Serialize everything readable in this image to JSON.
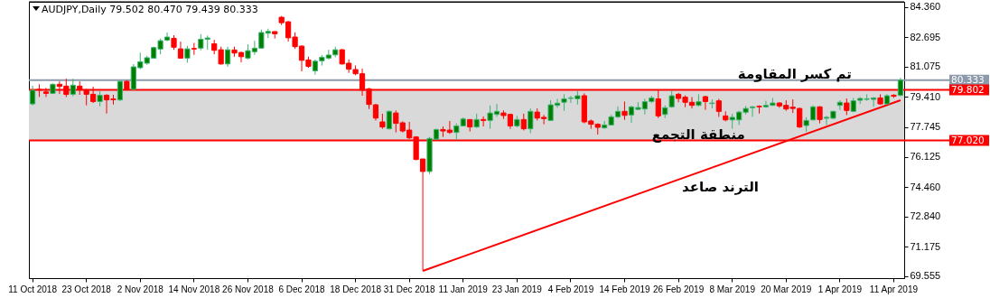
{
  "chart_data": {
    "type": "candlestick",
    "title": "AUDJPY,Daily 79.502 80.470 79.439 80.333",
    "categories": [
      "11 Oct 2018",
      null,
      null,
      null,
      null,
      null,
      null,
      null,
      "23 Oct 2018",
      null,
      null,
      null,
      null,
      null,
      null,
      null,
      "2 Nov 2018",
      null,
      null,
      null,
      null,
      null,
      null,
      null,
      "14 Nov 2018",
      null,
      null,
      null,
      null,
      null,
      null,
      null,
      "26 Nov 2018",
      null,
      null,
      null,
      null,
      null,
      null,
      null,
      "6 Dec 2018",
      null,
      null,
      null,
      null,
      null,
      null,
      null,
      "18 Dec 2018",
      null,
      null,
      null,
      null,
      null,
      null,
      null,
      "31 Dec 2018",
      null,
      null,
      null,
      null,
      null,
      null,
      null,
      "11 Jan 2019",
      null,
      null,
      null,
      null,
      null,
      null,
      null,
      "23 Jan 2019",
      null,
      null,
      null,
      null,
      null,
      null,
      null,
      "4 Feb 2019",
      null,
      null,
      null,
      null,
      null,
      null,
      null,
      "14 Feb 2019",
      null,
      null,
      null,
      null,
      null,
      null,
      null,
      "26 Feb 2019",
      null,
      null,
      null,
      null,
      null,
      null,
      null,
      "8 Mar 2019",
      null,
      null,
      null,
      null,
      null,
      null,
      null,
      "20 Mar 2019",
      null,
      null,
      null,
      null,
      null,
      null,
      null,
      "1 Apr 2019",
      null,
      null,
      null,
      null,
      null,
      null,
      null,
      "11 Apr 2019",
      null
    ],
    "ohlc": [
      [
        79.03,
        80.03,
        78.95,
        79.78
      ],
      [
        79.83,
        80.11,
        79.41,
        79.79
      ],
      [
        79.69,
        79.91,
        79.41,
        79.61
      ],
      [
        79.61,
        80.16,
        79.58,
        80.11
      ],
      [
        80.11,
        80.27,
        79.58,
        79.99
      ],
      [
        80.01,
        80.41,
        79.41,
        79.55
      ],
      [
        79.56,
        80.41,
        79.45,
        80.06
      ],
      [
        80.01,
        80.27,
        79.53,
        79.81
      ],
      [
        79.81,
        79.86,
        78.95,
        79.56
      ],
      [
        79.56,
        79.98,
        79.08,
        79.16
      ],
      [
        79.16,
        79.73,
        78.9,
        79.51
      ],
      [
        79.51,
        79.56,
        78.5,
        79.25
      ],
      [
        79.3,
        79.53,
        79.0,
        79.26
      ],
      [
        79.25,
        80.31,
        79.18,
        80.27
      ],
      [
        80.27,
        80.32,
        79.81,
        79.83
      ],
      [
        79.83,
        81.22,
        79.81,
        81.07
      ],
      [
        81.02,
        81.85,
        80.94,
        81.35
      ],
      [
        81.27,
        81.68,
        81.19,
        81.57
      ],
      [
        81.55,
        82.18,
        81.52,
        82.13
      ],
      [
        82.05,
        82.63,
        81.76,
        82.51
      ],
      [
        82.54,
        82.96,
        82.48,
        82.71
      ],
      [
        82.64,
        82.81,
        82.01,
        82.15
      ],
      [
        82.06,
        82.46,
        81.52,
        81.55
      ],
      [
        81.55,
        82.23,
        81.3,
        82.06
      ],
      [
        82.08,
        82.39,
        81.73,
        82.05
      ],
      [
        82.1,
        82.87,
        81.98,
        82.59
      ],
      [
        82.59,
        82.79,
        82.01,
        82.66
      ],
      [
        82.34,
        82.56,
        81.76,
        81.98
      ],
      [
        82.01,
        82.18,
        81.19,
        81.23
      ],
      [
        81.23,
        82.18,
        81.07,
        82.01
      ],
      [
        82.0,
        82.18,
        81.63,
        81.83
      ],
      [
        81.86,
        81.9,
        81.32,
        81.63
      ],
      [
        81.55,
        82.31,
        81.48,
        81.96
      ],
      [
        81.9,
        82.51,
        81.73,
        82.1
      ],
      [
        82.1,
        83.12,
        82.06,
        82.96
      ],
      [
        82.92,
        83.17,
        82.66,
        83.02
      ],
      [
        83.01,
        83.02,
        82.63,
        82.89
      ],
      [
        83.8,
        83.87,
        83.37,
        83.5
      ],
      [
        83.55,
        83.59,
        82.46,
        82.67
      ],
      [
        82.71,
        82.97,
        82.06,
        82.18
      ],
      [
        82.21,
        82.26,
        80.82,
        81.43
      ],
      [
        81.45,
        81.63,
        81.02,
        81.1
      ],
      [
        80.85,
        81.47,
        80.64,
        81.38
      ],
      [
        81.4,
        81.72,
        81.14,
        81.6
      ],
      [
        81.55,
        82.01,
        81.48,
        81.72
      ],
      [
        81.73,
        82.18,
        81.6,
        82.01
      ],
      [
        82.01,
        82.06,
        81.19,
        81.23
      ],
      [
        81.27,
        81.48,
        80.74,
        80.94
      ],
      [
        80.92,
        81.15,
        80.61,
        80.69
      ],
      [
        80.69,
        80.97,
        79.48,
        79.78
      ],
      [
        79.86,
        79.91,
        78.75,
        79.0
      ],
      [
        78.98,
        79.03,
        78.12,
        78.25
      ],
      [
        78.04,
        78.49,
        77.66,
        77.76
      ],
      [
        77.66,
        78.67,
        77.62,
        78.62
      ],
      [
        78.53,
        78.67,
        77.46,
        77.96
      ],
      [
        77.99,
        78.07,
        77.46,
        77.54
      ],
      [
        77.59,
        78.04,
        77.09,
        77.16
      ],
      [
        77.21,
        77.26,
        75.93,
        75.97
      ],
      [
        76.0,
        76.0,
        69.84,
        75.31
      ],
      [
        75.31,
        77.21,
        75.17,
        77.13
      ],
      [
        77.09,
        77.67,
        77.04,
        77.62
      ],
      [
        77.62,
        77.79,
        77.21,
        77.54
      ],
      [
        77.59,
        78.09,
        77.38,
        77.46
      ],
      [
        77.46,
        77.96,
        77.04,
        77.82
      ],
      [
        77.82,
        78.29,
        77.79,
        78.2
      ],
      [
        78.17,
        78.17,
        77.51,
        77.76
      ],
      [
        77.76,
        78.49,
        77.71,
        78.17
      ],
      [
        78.17,
        78.34,
        77.79,
        78.12
      ],
      [
        78.12,
        78.95,
        77.66,
        78.53
      ],
      [
        78.45,
        79.03,
        78.32,
        78.62
      ],
      [
        78.53,
        78.67,
        78.2,
        78.39
      ],
      [
        78.45,
        78.49,
        77.66,
        77.82
      ],
      [
        77.82,
        78.37,
        77.74,
        78.17
      ],
      [
        78.17,
        78.49,
        77.57,
        77.66
      ],
      [
        77.66,
        78.78,
        77.42,
        78.62
      ],
      [
        78.58,
        78.78,
        78.12,
        78.25
      ],
      [
        78.29,
        78.42,
        77.91,
        78.22
      ],
      [
        78.12,
        79.23,
        78.09,
        78.98
      ],
      [
        78.95,
        79.31,
        78.82,
        79.07
      ],
      [
        79.12,
        79.56,
        78.65,
        79.31
      ],
      [
        79.33,
        79.48,
        79.08,
        79.36
      ],
      [
        79.31,
        79.73,
        79.0,
        79.48
      ],
      [
        79.48,
        79.61,
        77.96,
        78.04
      ],
      [
        78.09,
        78.17,
        77.66,
        77.91
      ],
      [
        77.91,
        77.96,
        77.34,
        77.74
      ],
      [
        77.71,
        78.09,
        77.66,
        77.87
      ],
      [
        77.87,
        78.42,
        77.84,
        78.32
      ],
      [
        78.32,
        78.9,
        78.25,
        78.62
      ],
      [
        78.62,
        79.16,
        78.15,
        78.4
      ],
      [
        78.42,
        78.92,
        77.99,
        78.87
      ],
      [
        78.73,
        79.12,
        78.7,
        78.83
      ],
      [
        78.75,
        79.31,
        78.45,
        79.15
      ],
      [
        79.16,
        79.48,
        79.07,
        79.36
      ],
      [
        79.31,
        79.78,
        78.25,
        78.37
      ],
      [
        78.45,
        78.95,
        78.25,
        78.82
      ],
      [
        78.87,
        79.78,
        78.82,
        79.48
      ],
      [
        79.56,
        79.64,
        79.12,
        79.33
      ],
      [
        79.4,
        79.5,
        78.85,
        79.12
      ],
      [
        79.12,
        79.41,
        78.78,
        78.95
      ],
      [
        78.95,
        79.56,
        78.9,
        79.15
      ],
      [
        79.43,
        79.48,
        78.7,
        79.16
      ],
      [
        79.05,
        79.28,
        78.78,
        79.08
      ],
      [
        79.2,
        79.31,
        78.32,
        78.62
      ],
      [
        78.37,
        78.62,
        78.07,
        78.15
      ],
      [
        78.15,
        78.49,
        77.66,
        78.29
      ],
      [
        78.15,
        78.65,
        77.87,
        78.58
      ],
      [
        78.57,
        78.92,
        78.45,
        78.78
      ],
      [
        78.82,
        78.92,
        78.32,
        78.87
      ],
      [
        78.9,
        78.95,
        78.5,
        78.87
      ],
      [
        78.87,
        79.2,
        78.82,
        78.95
      ],
      [
        78.95,
        79.36,
        78.92,
        79.08
      ],
      [
        79.08,
        79.12,
        78.82,
        78.92
      ],
      [
        78.95,
        79.23,
        78.65,
        78.75
      ],
      [
        78.85,
        79.28,
        78.53,
        78.78
      ],
      [
        78.78,
        78.82,
        77.71,
        77.76
      ],
      [
        77.84,
        78.29,
        77.49,
        78.12
      ],
      [
        78.15,
        78.95,
        78.12,
        78.87
      ],
      [
        78.87,
        78.9,
        77.96,
        78.17
      ],
      [
        78.24,
        78.37,
        77.87,
        78.29
      ],
      [
        78.24,
        78.65,
        78.2,
        78.62
      ],
      [
        78.95,
        79.23,
        78.7,
        79.12
      ],
      [
        79.08,
        79.33,
        78.42,
        78.67
      ],
      [
        78.62,
        79.36,
        78.58,
        79.2
      ],
      [
        79.23,
        79.41,
        79.03,
        79.33
      ],
      [
        79.28,
        79.56,
        79.2,
        79.31
      ],
      [
        79.28,
        79.41,
        78.87,
        79.36
      ],
      [
        79.36,
        79.56,
        78.98,
        79.03
      ],
      [
        79.03,
        79.56,
        79.03,
        79.48
      ],
      [
        79.51,
        79.56,
        79.36,
        79.45
      ],
      [
        79.502,
        80.47,
        79.439,
        80.333
      ]
    ],
    "series": [
      {
        "type": "line",
        "color": "#ff0000",
        "values": [
          null,
          null,
          null,
          null,
          null,
          null,
          null,
          null,
          null,
          null,
          null,
          null,
          null,
          null,
          null,
          null,
          null,
          null,
          null,
          null,
          null,
          null,
          null,
          null,
          null,
          null,
          null,
          null,
          null,
          null,
          null,
          null,
          null,
          null,
          null,
          null,
          null,
          null,
          null,
          null,
          null,
          null,
          null,
          null,
          null,
          null,
          null,
          null,
          null,
          null,
          null,
          null,
          null,
          null,
          null,
          null,
          null,
          null,
          69.84,
          null,
          null,
          null,
          null,
          null,
          null,
          null,
          null,
          null,
          null,
          null,
          null,
          null,
          null,
          null,
          null,
          null,
          null,
          null,
          null,
          null,
          null,
          null,
          null,
          null,
          null,
          null,
          null,
          null,
          null,
          null,
          null,
          null,
          null,
          null,
          null,
          null,
          null,
          null,
          null,
          null,
          null,
          null,
          null,
          null,
          null,
          null,
          null,
          null,
          null,
          null,
          null,
          null,
          null,
          null,
          null,
          null,
          null,
          null,
          null,
          null,
          null,
          null,
          null,
          null,
          null,
          null,
          null,
          null,
          null,
          79.23
        ]
      }
    ],
    "ylim": [
      69.44,
      84.65
    ],
    "yticks": [
      {
        "value": 84.36,
        "label": "84.360"
      },
      82.695,
      81.075,
      {
        "value": 79.41,
        "label": "79.410"
      },
      77.745,
      76.125,
      {
        "value": 74.46,
        "label": "74.460"
      },
      {
        "value": 72.84,
        "label": "72.840"
      },
      71.175,
      69.555
    ],
    "ref_lines": [
      {
        "axis": "y",
        "value": 80.333,
        "label": "80.333",
        "color": "#8c9aab"
      },
      {
        "axis": "y",
        "value": 79.802,
        "label": "79.802",
        "color": "#ff0000"
      },
      {
        "axis": "y",
        "value": 77.02,
        "label": "77.020",
        "color": "#ff0000"
      }
    ],
    "bands": [
      {
        "axis": "y",
        "from": 77.02,
        "to": 79.802,
        "label": "منطقة التجمع",
        "color": "#d9d9d9"
      }
    ],
    "annotations": [
      "تم كسر المقاومة",
      "الترند صاعد"
    ]
  }
}
